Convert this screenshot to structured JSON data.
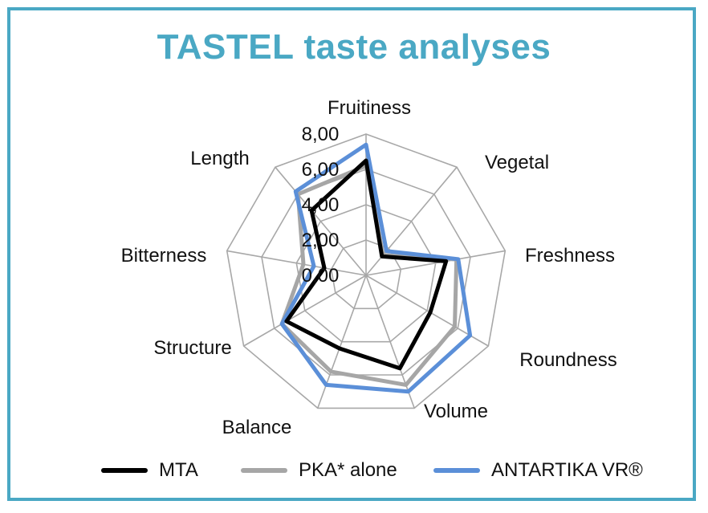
{
  "chart_data": {
    "type": "radar",
    "title": "TASTEL taste analyses",
    "axes": [
      "Fruitiness",
      "Vegetal",
      "Freshness",
      "Roundness",
      "Volume",
      "Balance",
      "Structure",
      "Bitterness",
      "Length"
    ],
    "ticks": [
      "0,00",
      "2,00",
      "4,00",
      "6,00",
      "8,00"
    ],
    "rmax": 8,
    "grid": true,
    "legend_position": "bottom",
    "series": [
      {
        "name": "MTA",
        "color": "#000000",
        "values": [
          6.5,
          1.4,
          4.6,
          4.2,
          5.6,
          4.4,
          5.2,
          2.4,
          4.8
        ]
      },
      {
        "name": "PKA* alone",
        "color": "#a6a6a6",
        "values": [
          6.2,
          1.5,
          5.2,
          5.8,
          6.6,
          5.8,
          5.5,
          3.6,
          6.0
        ]
      },
      {
        "name": "ANTARTIKA VR®",
        "color": "#5b8fd8",
        "values": [
          7.4,
          1.8,
          5.3,
          6.8,
          7.0,
          6.6,
          5.5,
          3.0,
          6.2
        ]
      }
    ]
  }
}
